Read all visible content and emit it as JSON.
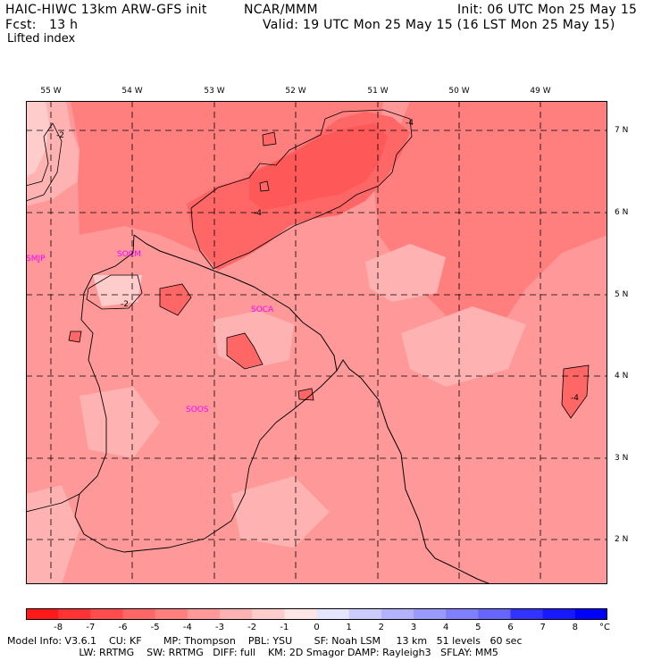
{
  "header": {
    "model_title": "HAIC-HIWC 13km ARW-GFS init",
    "center": "NCAR/MMM",
    "init": "Init: 06 UTC Mon 25 May 15",
    "forecast": "Fcst:   13 h",
    "valid": "Valid: 19 UTC Mon 25 May 15 (16 LST Mon 25 May 15)",
    "field_name": "Lifted index"
  },
  "map": {
    "lon_labels": [
      "55 W",
      "54 W",
      "53 W",
      "52 W",
      "51 W",
      "50 W",
      "49 W"
    ],
    "lat_labels": [
      "7 N",
      "6 N",
      "5 N",
      "4 N",
      "3 N",
      "2 N"
    ],
    "stations": [
      "SMJP",
      "SOCM",
      "SOCA",
      "SOOS"
    ],
    "contour_labels": [
      "-2",
      "-4",
      "-4",
      "-2",
      "-4"
    ]
  },
  "colorbar": {
    "ticks": [
      "-8",
      "-7",
      "-6",
      "-5",
      "-4",
      "-3",
      "-2",
      "-1",
      "0",
      "1",
      "2",
      "3",
      "4",
      "5",
      "6",
      "7",
      "8"
    ],
    "unit": "°C",
    "colors": [
      "#ff1919",
      "#ff3333",
      "#ff4c4c",
      "#ff6666",
      "#ff7f7f",
      "#ff9999",
      "#ffb2b2",
      "#ffcccc",
      "#ffe5e5",
      "#e5e5ff",
      "#ccccff",
      "#b2b2ff",
      "#9999ff",
      "#7f7fff",
      "#6666ff",
      "#3333ff",
      "#1919ff",
      "#0000ff"
    ]
  },
  "model_info": {
    "line1": "Model Info: V3.6.1    CU: KF       MP: Thompson    PBL: YSU       SF: Noah LSM     13 km   51 levels   60 sec",
    "line2": "                       LW: RRTMG    SW: RRTMG   DIFF: full    KM: 2D Smagor DAMP: Rayleigh3   SFLAY: MM5"
  }
}
